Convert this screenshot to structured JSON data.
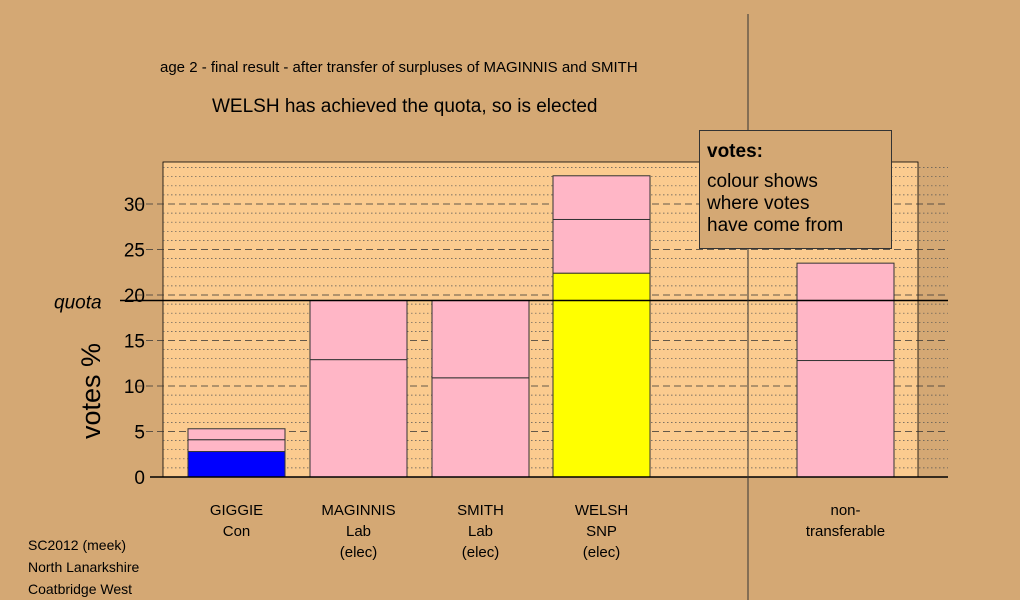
{
  "header": {
    "stage_title": "age 2 - final result - after transfer of surpluses of MAGINNIS and SMITH",
    "result_text": "WELSH has achieved the quota, so is elected"
  },
  "legend": {
    "title": "votes:",
    "body": "colour shows\nwhere votes\nhave come from"
  },
  "footer": {
    "text": "SC2012 (meek)\nNorth Lanarkshire\nCoatbridge West"
  },
  "colors": {
    "background": "#d4a874",
    "plot_area": "#fbcb8f",
    "pink": "#ffb6c6",
    "yellow": "#ffff00",
    "blue": "#0000ff"
  },
  "chart_data": {
    "type": "bar",
    "stacked": true,
    "ylabel": "votes %",
    "ylim": [
      0,
      35
    ],
    "yticks": [
      0,
      5,
      10,
      15,
      20,
      25,
      30
    ],
    "quota": {
      "label": "quota",
      "value": 19.4
    },
    "grid": "dashed major, dotted minor",
    "categories": [
      {
        "lines": [
          "GIGGIE",
          "Con"
        ]
      },
      {
        "lines": [
          "MAGINNIS",
          "Lab",
          "(elec)"
        ]
      },
      {
        "lines": [
          "SMITH",
          "Lab",
          "(elec)"
        ]
      },
      {
        "lines": [
          "WELSH",
          "SNP",
          "(elec)"
        ]
      },
      {
        "lines": [
          "non-",
          "transferable"
        ]
      }
    ],
    "bars": [
      {
        "segments": [
          {
            "value": 2.8,
            "color": "#0000ff"
          },
          {
            "value": 1.3,
            "color": "#ffb6c6"
          },
          {
            "value": 1.2,
            "color": "#ffb6c6"
          }
        ]
      },
      {
        "segments": [
          {
            "value": 12.9,
            "color": "#ffb6c6"
          },
          {
            "value": 6.5,
            "color": "#ffb6c6"
          }
        ]
      },
      {
        "segments": [
          {
            "value": 10.9,
            "color": "#ffb6c6"
          },
          {
            "value": 8.5,
            "color": "#ffb6c6"
          }
        ]
      },
      {
        "segments": [
          {
            "value": 22.4,
            "color": "#ffff00"
          },
          {
            "value": 5.9,
            "color": "#ffb6c6"
          },
          {
            "value": 4.8,
            "color": "#ffb6c6"
          }
        ]
      },
      {
        "segments": [
          {
            "value": 12.8,
            "color": "#ffb6c6"
          },
          {
            "value": 10.7,
            "color": "#ffb6c6"
          }
        ]
      }
    ]
  }
}
